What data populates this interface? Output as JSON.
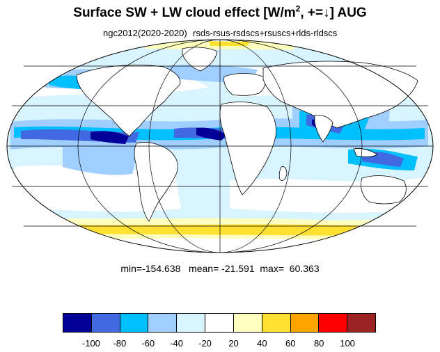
{
  "title": {
    "main": "Surface SW + LW cloud effect [W/m",
    "sup": "2",
    "suffix": ", +=↓]  AUG"
  },
  "subtitle_left": "ngc2012(2020-2020)",
  "subtitle_right": "rsds-rsus-rsdscs+rsuscs+rlds-rldscs",
  "stats": "min=-154.638   mean= -21.591  max=  60.363",
  "colorbar": {
    "colors": [
      "#000099",
      "#4169e1",
      "#00bfff",
      "#a0cfff",
      "#d8f4ff",
      "#ffffff",
      "#ffffc0",
      "#ffe033",
      "#ffa500",
      "#ff0000",
      "#9c2323"
    ],
    "labels": [
      "-100",
      "-80",
      "-60",
      "-40",
      "-20",
      "20",
      "40",
      "60",
      "80",
      "100"
    ]
  },
  "map": {
    "projection": "mollweide",
    "background_field": "#d8f4ff",
    "coastline_color": "#000000"
  }
}
